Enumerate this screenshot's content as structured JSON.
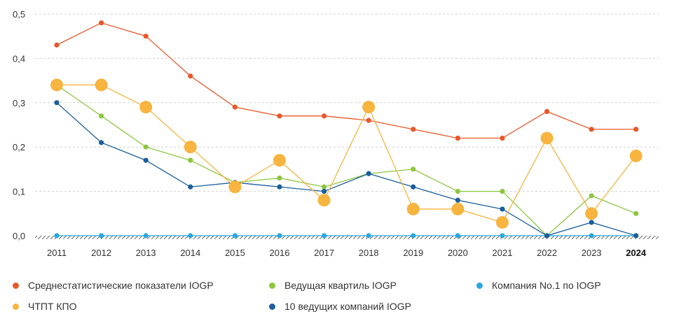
{
  "chart_data": {
    "type": "line",
    "x": [
      "2011",
      "2012",
      "2013",
      "2014",
      "2015",
      "2016",
      "2017",
      "2018",
      "2019",
      "2020",
      "2021",
      "2022",
      "2023",
      "2024"
    ],
    "x_bold": "2024",
    "ylim": [
      0,
      0.5
    ],
    "y_ticks": [
      "0,0",
      "0,1",
      "0,2",
      "0,3",
      "0,4",
      "0,5"
    ],
    "grid": "horizontal dashed",
    "legend_placement": "bottom",
    "series": [
      {
        "name": "Среднестатистические показатели IOGP",
        "color": "#E8572A",
        "values": [
          0.43,
          0.48,
          0.45,
          0.36,
          0.29,
          0.27,
          0.27,
          0.26,
          0.24,
          0.22,
          0.22,
          0.28,
          0.24,
          0.24
        ]
      },
      {
        "name": "Ведущая квартиль IOGP",
        "color": "#8CC63F",
        "values": [
          0.34,
          0.27,
          0.2,
          0.17,
          0.12,
          0.13,
          0.11,
          0.14,
          0.15,
          0.1,
          0.1,
          0.0,
          0.09,
          0.05
        ]
      },
      {
        "name": "Компания No.1 по IOGP",
        "color": "#29A8DF",
        "values": [
          0,
          0,
          0,
          0,
          0,
          0,
          0,
          0,
          0,
          0,
          0,
          0,
          0,
          0
        ]
      },
      {
        "name": "ЧТПТ КПО",
        "color": "#F7B43F",
        "values": [
          0.34,
          0.34,
          0.29,
          0.2,
          0.11,
          0.17,
          0.08,
          0.29,
          0.06,
          0.06,
          0.03,
          0.22,
          0.05,
          0.18
        ]
      },
      {
        "name": "10 ведущих компаний IOGP",
        "color": "#1B5E9A",
        "values": [
          0.3,
          0.21,
          0.17,
          0.11,
          0.12,
          0.11,
          0.1,
          0.14,
          0.11,
          0.08,
          0.06,
          0.0,
          0.03,
          0.0
        ]
      }
    ]
  },
  "legend": {
    "items": [
      {
        "label": "Среднестатистические показатели IOGP",
        "color": "#E8572A"
      },
      {
        "label": "Ведущая квартиль IOGP",
        "color": "#8CC63F"
      },
      {
        "label": "Компания No.1 по IOGP",
        "color": "#29A8DF"
      },
      {
        "label": "ЧТПТ КПО",
        "color": "#F7B43F"
      },
      {
        "label": "10 ведущих компаний IOGP",
        "color": "#1B5E9A"
      }
    ]
  }
}
